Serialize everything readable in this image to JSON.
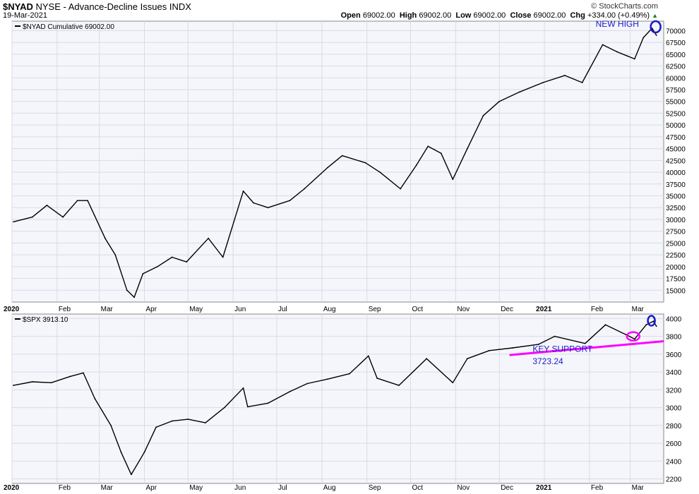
{
  "header": {
    "symbol": "$NYAD",
    "name": "NYSE - Advance-Decline Issues",
    "exchange": "INDX",
    "date": "19-Mar-2021",
    "credit": "© StockCharts.com",
    "open_label": "Open",
    "open": "69002.00",
    "high_label": "High",
    "high": "69002.00",
    "low_label": "Low",
    "low": "69002.00",
    "close_label": "Close",
    "close": "69002.00",
    "chg_label": "Chg",
    "chg": "+334.00 (+0.49%)"
  },
  "colors": {
    "background": "#f5f6fb",
    "grid": "#d8dbe6",
    "line": "#000000",
    "annotation_blue": "#1a1acc",
    "annotation_magenta": "#ff00ff"
  },
  "chart_data": [
    {
      "type": "line",
      "legend": "$NYAD Cumulative 69002.00",
      "legend_position": "top-left",
      "grid": true,
      "x_labels": [
        "2020",
        "Feb",
        "Mar",
        "Apr",
        "May",
        "Jun",
        "Jul",
        "Aug",
        "Sep",
        "Oct",
        "Nov",
        "Dec",
        "2021",
        "Feb",
        "Mar"
      ],
      "ylim": [
        12500,
        72000
      ],
      "y_ticks": [
        15000,
        17500,
        20000,
        22500,
        25000,
        27500,
        30000,
        32500,
        35000,
        37500,
        40000,
        42500,
        45000,
        47500,
        50000,
        52500,
        55000,
        57500,
        60000,
        62500,
        65000,
        67500,
        70000
      ],
      "x": [
        "2020-01-02",
        "2020-01-15",
        "2020-01-25",
        "2020-02-05",
        "2020-02-15",
        "2020-02-22",
        "2020-03-05",
        "2020-03-12",
        "2020-03-20",
        "2020-03-25",
        "2020-03-31",
        "2020-04-10",
        "2020-04-20",
        "2020-04-30",
        "2020-05-15",
        "2020-05-25",
        "2020-06-08",
        "2020-06-15",
        "2020-06-25",
        "2020-07-10",
        "2020-07-20",
        "2020-08-05",
        "2020-08-15",
        "2020-08-31",
        "2020-09-10",
        "2020-09-24",
        "2020-10-05",
        "2020-10-13",
        "2020-10-22",
        "2020-10-30",
        "2020-11-09",
        "2020-11-20",
        "2020-12-01",
        "2020-12-15",
        "2020-12-31",
        "2021-01-15",
        "2021-01-27",
        "2021-02-10",
        "2021-02-20",
        "2021-03-04",
        "2021-03-10",
        "2021-03-16",
        "2021-03-19"
      ],
      "values": [
        29500,
        30500,
        33000,
        30500,
        34000,
        34000,
        26000,
        22500,
        15000,
        13500,
        18500,
        20000,
        22000,
        21000,
        26000,
        22000,
        36000,
        33500,
        32500,
        34000,
        36500,
        41000,
        43500,
        42000,
        40000,
        36500,
        41500,
        45500,
        44000,
        38500,
        45000,
        52000,
        55000,
        57000,
        59000,
        60500,
        59000,
        67000,
        65500,
        64000,
        68500,
        70500,
        69002
      ],
      "annotations": [
        {
          "text": "NEW HIGH",
          "x": "2021-03-17",
          "y": 70500
        }
      ]
    },
    {
      "type": "bar",
      "legend": "$SPX 3913.10",
      "legend_position": "top-left",
      "grid": true,
      "x_labels": [
        "2020",
        "Feb",
        "Mar",
        "Apr",
        "May",
        "Jun",
        "Jul",
        "Aug",
        "Sep",
        "Oct",
        "Nov",
        "Dec",
        "2021",
        "Feb",
        "Mar"
      ],
      "ylim": [
        2150,
        4050
      ],
      "y_ticks": [
        2200,
        2400,
        2600,
        2800,
        3000,
        3200,
        3400,
        3600,
        3800,
        4000
      ],
      "x": [
        "2020-01-02",
        "2020-01-15",
        "2020-01-28",
        "2020-02-10",
        "2020-02-19",
        "2020-02-27",
        "2020-03-09",
        "2020-03-16",
        "2020-03-23",
        "2020-04-01",
        "2020-04-09",
        "2020-04-20",
        "2020-05-01",
        "2020-05-13",
        "2020-05-26",
        "2020-06-08",
        "2020-06-11",
        "2020-06-25",
        "2020-07-10",
        "2020-07-22",
        "2020-08-05",
        "2020-08-20",
        "2020-09-02",
        "2020-09-08",
        "2020-09-23",
        "2020-10-12",
        "2020-10-30",
        "2020-11-09",
        "2020-11-24",
        "2020-12-10",
        "2020-12-28",
        "2021-01-08",
        "2021-01-29",
        "2021-02-12",
        "2021-02-26",
        "2021-03-04",
        "2021-03-12",
        "2021-03-17",
        "2021-03-19"
      ],
      "values": [
        3250,
        3290,
        3280,
        3350,
        3390,
        3100,
        2800,
        2500,
        2250,
        2500,
        2780,
        2850,
        2870,
        2830,
        3000,
        3220,
        3010,
        3050,
        3180,
        3270,
        3320,
        3380,
        3580,
        3330,
        3250,
        3550,
        3280,
        3550,
        3640,
        3670,
        3710,
        3800,
        3720,
        3930,
        3820,
        3770,
        3930,
        3970,
        3913
      ],
      "annotations": [
        {
          "text": "KEY SUPPORT",
          "x": "2020-12-20",
          "y": 3660
        },
        {
          "text": "3723.24",
          "x": "2020-12-20",
          "y": 3520
        }
      ]
    }
  ]
}
